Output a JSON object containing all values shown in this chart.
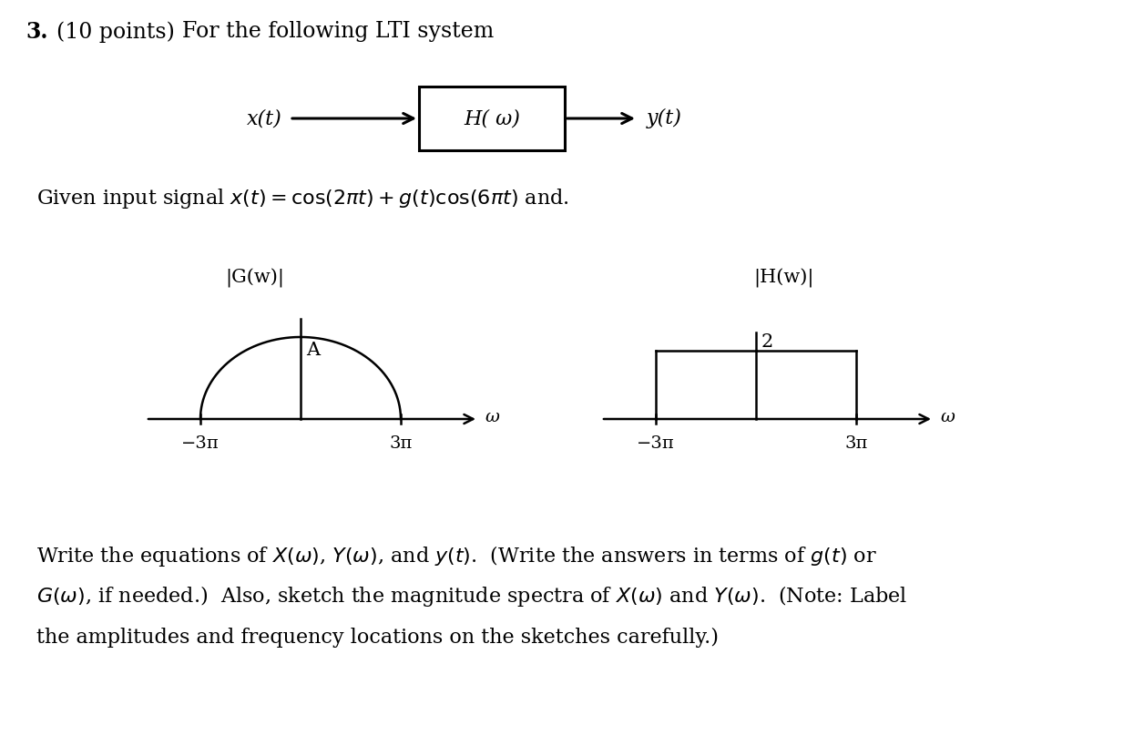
{
  "title_number": "3.",
  "title_points": "(10 points)",
  "title_text": "For the following LTI system",
  "block_label": "H( ω)",
  "input_label": "x(t)",
  "output_label": "y(t)",
  "g_plot_title": "|G(w)|",
  "h_plot_title": "|H(w)|",
  "g_peak_label": "A",
  "h_height_label": "2",
  "g_neg_freq": "−3π",
  "g_pos_freq": "3π",
  "h_neg_freq": "−3π",
  "h_pos_freq": "3π",
  "omega_label": "ω",
  "bottom_text_1": "Write the equations of X(ω), Y(ω), and y(t).  (Write the answers in terms of g(t) or",
  "bottom_text_2": "G(ω), if needed.)  Also, sketch the magnitude spectra of X(ω) and Y(ω).  (Note: Label",
  "bottom_text_3": "the amplitudes and frequency locations on the sketches carefully.)",
  "bg_color": "#ffffff",
  "text_color": "#000000"
}
